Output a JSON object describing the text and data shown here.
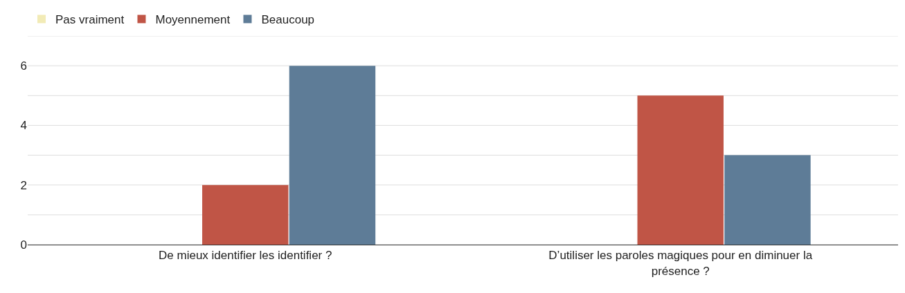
{
  "chart_data": {
    "type": "bar",
    "categories": [
      "De mieux identifier les identifier ?",
      "D’utiliser les paroles magiques pour en diminuer la présence ?"
    ],
    "series": [
      {
        "name": "Pas vraiment",
        "color": "#f2ebb6",
        "values": [
          0,
          0
        ]
      },
      {
        "name": "Moyennement",
        "color": "#c05546",
        "values": [
          2,
          5
        ]
      },
      {
        "name": "Beaucoup",
        "color": "#5e7c97",
        "values": [
          6,
          3
        ]
      }
    ],
    "ylim": [
      0,
      7
    ],
    "yticks": [
      0,
      {
        "value": 1,
        "label": null
      },
      2,
      {
        "value": 3,
        "label": null
      },
      4,
      {
        "value": 5,
        "label": null
      },
      6,
      {
        "value": 7,
        "label": null
      }
    ],
    "grid": "y",
    "legend": "top left"
  }
}
